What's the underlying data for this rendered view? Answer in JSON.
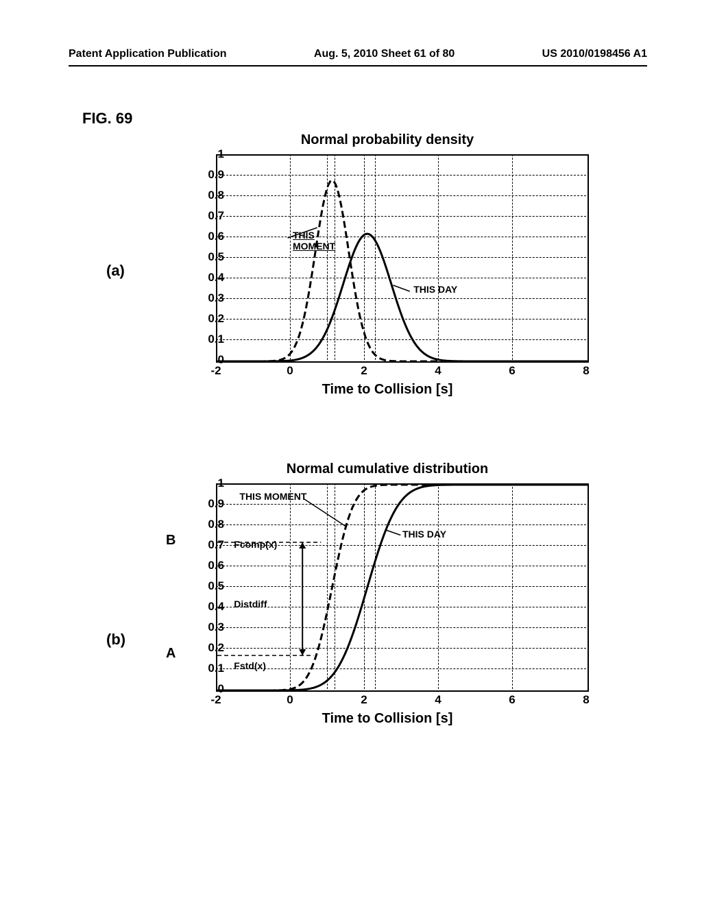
{
  "header": {
    "left": "Patent Application Publication",
    "center": "Aug. 5, 2010  Sheet 61 of 80",
    "right": "US 2010/0198456 A1"
  },
  "figure_label": "FIG. 69",
  "panel_a_label": "(a)",
  "panel_b_label": "(b)",
  "chart_a": {
    "title": "Normal probability density",
    "xlabel": "Time to Collision [s]",
    "xlim": [
      -2,
      8
    ],
    "ylim": [
      0,
      1
    ],
    "xticks": [
      -2,
      0,
      2,
      4,
      6,
      8
    ],
    "yticks": [
      0,
      0.1,
      0.2,
      0.3,
      0.4,
      0.5,
      0.6,
      0.7,
      0.8,
      0.9,
      1
    ],
    "vguides": [
      1.0,
      1.2,
      2.0,
      2.3
    ],
    "curve_moment": {
      "mean": 1.1,
      "sigma": 0.45,
      "peak": 0.88,
      "style": "dashed"
    },
    "curve_day": {
      "mean": 2.05,
      "sigma": 0.65,
      "peak": 0.62,
      "style": "solid"
    },
    "ann_moment": "THIS\nMOMENT",
    "ann_day": "THIS DAY",
    "background": "#ffffff",
    "line_color": "#000000",
    "line_width": 3
  },
  "chart_b": {
    "title": "Normal cumulative distribution",
    "xlabel": "Time to Collision [s]",
    "xlim": [
      -2,
      8
    ],
    "ylim": [
      0,
      1
    ],
    "xticks": [
      -2,
      0,
      2,
      4,
      6,
      8
    ],
    "yticks": [
      0,
      0.1,
      0.2,
      0.3,
      0.4,
      0.5,
      0.6,
      0.7,
      0.8,
      0.9,
      1
    ],
    "vguides": [
      1.0,
      1.2,
      2.0,
      2.3
    ],
    "curve_moment": {
      "mean": 1.1,
      "sigma": 0.45,
      "style": "dashed"
    },
    "curve_day": {
      "mean": 2.05,
      "sigma": 0.65,
      "style": "solid"
    },
    "ann_moment": "THIS MOMENT",
    "ann_day": "THIS DAY",
    "ann_fcomp": "Fcomp(x)",
    "ann_distdiff": "Distdiff",
    "ann_fstd": "Fstd(x)",
    "marker_A": "A",
    "marker_B": "B",
    "A_y": 0.17,
    "B_y": 0.72,
    "background": "#ffffff",
    "line_color": "#000000",
    "line_width": 3
  }
}
